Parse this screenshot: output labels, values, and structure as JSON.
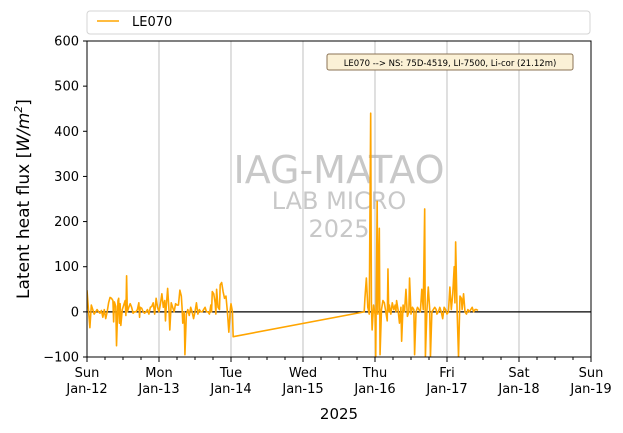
{
  "chart_data": {
    "type": "line",
    "title": "",
    "xlabel": "2025",
    "ylabel": "Latent heat flux [W/m²]",
    "ylabel_parts": {
      "text": "Latent heat flux ",
      "unit_open": "[",
      "unit_base": "W/m",
      "unit_exp": "2",
      "unit_close": "]"
    },
    "ylim": [
      -100,
      600
    ],
    "yticks": [
      -100,
      0,
      100,
      200,
      300,
      400,
      500,
      600
    ],
    "xlim_days": [
      0,
      7
    ],
    "xticks": [
      {
        "day": 0,
        "label1": "Sun",
        "label2": "Jan-12"
      },
      {
        "day": 1,
        "label1": "Mon",
        "label2": "Jan-13"
      },
      {
        "day": 2,
        "label1": "Tue",
        "label2": "Jan-14"
      },
      {
        "day": 3,
        "label1": "Wed",
        "label2": "Jan-15"
      },
      {
        "day": 4,
        "label1": "Thu",
        "label2": "Jan-16"
      },
      {
        "day": 5,
        "label1": "Fri",
        "label2": "Jan-17"
      },
      {
        "day": 6,
        "label1": "Sat",
        "label2": "Jan-18"
      },
      {
        "day": 7,
        "label1": "Sun",
        "label2": "Jan-19"
      }
    ],
    "grid": "vertical",
    "zero_line": true,
    "legend": {
      "placement": "top",
      "entries": [
        {
          "name": "LE070",
          "color": "#FFA500"
        }
      ]
    },
    "annotation": "LE070 --> NS: 75D-4519, LI-7500, Li-cor (21.12m)",
    "watermark": {
      "line1": "IAG-MATAO",
      "line2": "LAB MICRO",
      "line3": "2025"
    },
    "series": [
      {
        "name": "LE070",
        "color": "#FFA500",
        "points": [
          [
            0.0,
            48
          ],
          [
            0.02,
            5
          ],
          [
            0.04,
            -35
          ],
          [
            0.06,
            15
          ],
          [
            0.08,
            5
          ],
          [
            0.1,
            -5
          ],
          [
            0.12,
            0
          ],
          [
            0.14,
            5
          ],
          [
            0.16,
            0
          ],
          [
            0.18,
            -3
          ],
          [
            0.2,
            3
          ],
          [
            0.22,
            -12
          ],
          [
            0.24,
            5
          ],
          [
            0.26,
            -15
          ],
          [
            0.28,
            0
          ],
          [
            0.3,
            20
          ],
          [
            0.32,
            32
          ],
          [
            0.34,
            30
          ],
          [
            0.36,
            25
          ],
          [
            0.37,
            -22
          ],
          [
            0.38,
            22
          ],
          [
            0.4,
            12
          ],
          [
            0.41,
            -75
          ],
          [
            0.43,
            25
          ],
          [
            0.44,
            30
          ],
          [
            0.45,
            -25
          ],
          [
            0.46,
            18
          ],
          [
            0.47,
            -30
          ],
          [
            0.49,
            5
          ],
          [
            0.51,
            15
          ],
          [
            0.53,
            25
          ],
          [
            0.54,
            -8
          ],
          [
            0.55,
            80
          ],
          [
            0.56,
            0
          ],
          [
            0.58,
            10
          ],
          [
            0.6,
            18
          ],
          [
            0.62,
            10
          ],
          [
            0.64,
            -3
          ],
          [
            0.66,
            0
          ],
          [
            0.68,
            0
          ],
          [
            0.7,
            5
          ],
          [
            0.72,
            20
          ],
          [
            0.73,
            -12
          ],
          [
            0.74,
            10
          ],
          [
            0.76,
            8
          ],
          [
            0.78,
            0
          ],
          [
            0.8,
            -3
          ],
          [
            0.82,
            0
          ],
          [
            0.84,
            5
          ],
          [
            0.86,
            -5
          ],
          [
            0.88,
            10
          ],
          [
            0.9,
            12
          ],
          [
            0.92,
            20
          ],
          [
            0.94,
            -5
          ],
          [
            0.96,
            30
          ],
          [
            0.98,
            10
          ],
          [
            1.0,
            0
          ],
          [
            1.02,
            18
          ],
          [
            1.04,
            40
          ],
          [
            1.06,
            10
          ],
          [
            1.08,
            25
          ],
          [
            1.09,
            -20
          ],
          [
            1.1,
            10
          ],
          [
            1.12,
            52
          ],
          [
            1.14,
            0
          ],
          [
            1.15,
            -40
          ],
          [
            1.17,
            20
          ],
          [
            1.19,
            10
          ],
          [
            1.21,
            0
          ],
          [
            1.23,
            18
          ],
          [
            1.25,
            15
          ],
          [
            1.27,
            15
          ],
          [
            1.29,
            48
          ],
          [
            1.31,
            35
          ],
          [
            1.32,
            10
          ],
          [
            1.33,
            -25
          ],
          [
            1.35,
            0
          ],
          [
            1.36,
            -95
          ],
          [
            1.38,
            -5
          ],
          [
            1.4,
            5
          ],
          [
            1.42,
            -8
          ],
          [
            1.44,
            10
          ],
          [
            1.46,
            0
          ],
          [
            1.48,
            -15
          ],
          [
            1.5,
            0
          ],
          [
            1.52,
            20
          ],
          [
            1.54,
            -5
          ],
          [
            1.56,
            5
          ],
          [
            1.58,
            0
          ],
          [
            1.6,
            0
          ],
          [
            1.62,
            5
          ],
          [
            1.64,
            10
          ],
          [
            1.66,
            0
          ],
          [
            1.68,
            0
          ],
          [
            1.7,
            -5
          ],
          [
            1.72,
            15
          ],
          [
            1.73,
            0
          ],
          [
            1.74,
            45
          ],
          [
            1.76,
            40
          ],
          [
            1.78,
            20
          ],
          [
            1.79,
            -5
          ],
          [
            1.8,
            50
          ],
          [
            1.82,
            10
          ],
          [
            1.84,
            5
          ],
          [
            1.85,
            60
          ],
          [
            1.87,
            65
          ],
          [
            1.89,
            45
          ],
          [
            1.91,
            30
          ],
          [
            1.93,
            35
          ],
          [
            1.95,
            0
          ],
          [
            1.97,
            -45
          ],
          [
            1.99,
            5
          ],
          [
            2.0,
            18
          ],
          [
            2.02,
            0
          ],
          [
            2.03,
            -55
          ],
          [
            3.85,
            0
          ],
          [
            3.86,
            30
          ],
          [
            3.88,
            75
          ],
          [
            3.9,
            10
          ],
          [
            3.92,
            -5
          ],
          [
            3.94,
            440
          ],
          [
            3.95,
            20
          ],
          [
            3.96,
            -40
          ],
          [
            3.98,
            15
          ],
          [
            4.0,
            -5
          ],
          [
            4.01,
            -100
          ],
          [
            4.03,
            245
          ],
          [
            4.04,
            -5
          ],
          [
            4.06,
            185
          ],
          [
            4.07,
            -95
          ],
          [
            4.09,
            5
          ],
          [
            4.11,
            25
          ],
          [
            4.13,
            20
          ],
          [
            4.15,
            0
          ],
          [
            4.17,
            -20
          ],
          [
            4.18,
            95
          ],
          [
            4.19,
            0
          ],
          [
            4.2,
            15
          ],
          [
            4.22,
            -5
          ],
          [
            4.24,
            20
          ],
          [
            4.26,
            5
          ],
          [
            4.28,
            15
          ],
          [
            4.29,
            0
          ],
          [
            4.3,
            25
          ],
          [
            4.32,
            5
          ],
          [
            4.34,
            -25
          ],
          [
            4.36,
            10
          ],
          [
            4.37,
            -65
          ],
          [
            4.39,
            15
          ],
          [
            4.41,
            0
          ],
          [
            4.43,
            50
          ],
          [
            4.45,
            -10
          ],
          [
            4.47,
            0
          ],
          [
            4.48,
            75
          ],
          [
            4.5,
            -5
          ],
          [
            4.52,
            10
          ],
          [
            4.54,
            5
          ],
          [
            4.55,
            -95
          ],
          [
            4.57,
            0
          ],
          [
            4.59,
            10
          ],
          [
            4.61,
            5
          ],
          [
            4.63,
            0
          ],
          [
            4.65,
            50
          ],
          [
            4.67,
            5
          ],
          [
            4.69,
            228
          ],
          [
            4.7,
            -100
          ],
          [
            4.72,
            0
          ],
          [
            4.74,
            55
          ],
          [
            4.76,
            5
          ],
          [
            4.77,
            -100
          ],
          [
            4.79,
            0
          ],
          [
            4.81,
            5
          ],
          [
            4.83,
            10
          ],
          [
            4.85,
            5
          ],
          [
            4.86,
            -5
          ],
          [
            4.88,
            0
          ],
          [
            4.9,
            10
          ],
          [
            4.92,
            0
          ],
          [
            4.94,
            -15
          ],
          [
            4.96,
            10
          ],
          [
            4.98,
            5
          ],
          [
            5.0,
            -5
          ],
          [
            5.02,
            0
          ],
          [
            5.04,
            55
          ],
          [
            5.06,
            5
          ],
          [
            5.08,
            40
          ],
          [
            5.1,
            100
          ],
          [
            5.11,
            20
          ],
          [
            5.12,
            155
          ],
          [
            5.14,
            5
          ],
          [
            5.16,
            -100
          ],
          [
            5.18,
            35
          ],
          [
            5.2,
            30
          ],
          [
            5.21,
            5
          ],
          [
            5.23,
            40
          ],
          [
            5.25,
            0
          ],
          [
            5.27,
            -5
          ],
          [
            5.29,
            5
          ],
          [
            5.31,
            0
          ],
          [
            5.33,
            5
          ],
          [
            5.35,
            10
          ],
          [
            5.37,
            0
          ],
          [
            5.39,
            5
          ],
          [
            5.41,
            5
          ],
          [
            5.43,
            3
          ]
        ]
      }
    ]
  }
}
